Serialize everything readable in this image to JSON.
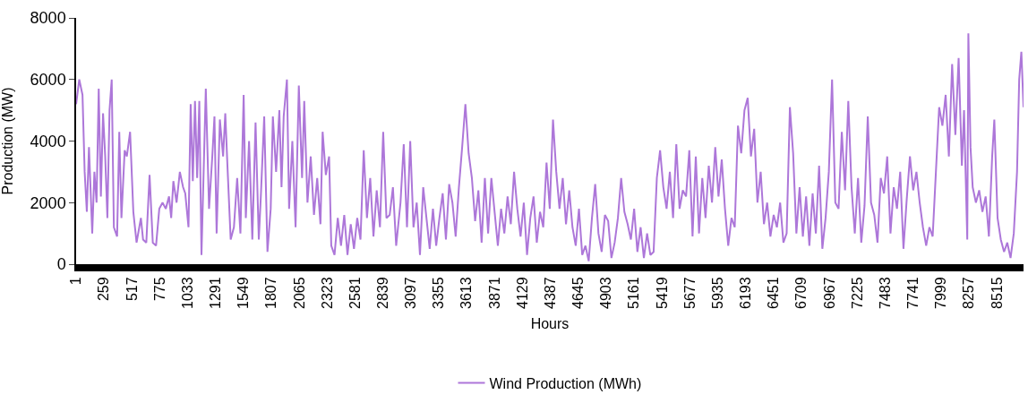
{
  "chart_data": {
    "type": "line",
    "xlabel": "Hours",
    "ylabel": "Production (MW)",
    "x": [
      1,
      30,
      60,
      80,
      100,
      120,
      150,
      170,
      190,
      210,
      230,
      250,
      270,
      290,
      310,
      330,
      350,
      380,
      400,
      420,
      450,
      470,
      500,
      530,
      560,
      600,
      620,
      650,
      680,
      710,
      740,
      770,
      800,
      830,
      860,
      880,
      900,
      930,
      960,
      990,
      1010,
      1040,
      1060,
      1080,
      1100,
      1120,
      1140,
      1160,
      1180,
      1200,
      1230,
      1260,
      1280,
      1300,
      1330,
      1360,
      1380,
      1400,
      1430,
      1460,
      1490,
      1520,
      1550,
      1570,
      1600,
      1630,
      1660,
      1690,
      1710,
      1740,
      1770,
      1800,
      1820,
      1850,
      1880,
      1900,
      1920,
      1950,
      1970,
      2000,
      2030,
      2060,
      2090,
      2110,
      2140,
      2170,
      2200,
      2230,
      2260,
      2280,
      2310,
      2340,
      2360,
      2390,
      2420,
      2450,
      2480,
      2510,
      2540,
      2570,
      2600,
      2630,
      2660,
      2690,
      2720,
      2750,
      2780,
      2810,
      2840,
      2870,
      2900,
      2930,
      2960,
      3000,
      3030,
      3060,
      3090,
      3120,
      3150,
      3180,
      3210,
      3240,
      3270,
      3300,
      3330,
      3360,
      3390,
      3420,
      3450,
      3480,
      3510,
      3540,
      3570,
      3600,
      3630,
      3660,
      3690,
      3720,
      3750,
      3780,
      3810,
      3840,
      3870,
      3900,
      3930,
      3960,
      3990,
      4020,
      4050,
      4080,
      4110,
      4140,
      4170,
      4200,
      4230,
      4260,
      4290,
      4320,
      4350,
      4380,
      4410,
      4440,
      4470,
      4500,
      4530,
      4560,
      4590,
      4620,
      4650,
      4680,
      4710,
      4740,
      4770,
      4800,
      4830,
      4860,
      4890,
      4920,
      4950,
      4980,
      5010,
      5040,
      5070,
      5100,
      5130,
      5160,
      5190,
      5220,
      5250,
      5280,
      5310,
      5340,
      5370,
      5400,
      5430,
      5460,
      5490,
      5520,
      5550,
      5580,
      5610,
      5640,
      5670,
      5700,
      5730,
      5760,
      5790,
      5820,
      5850,
      5880,
      5910,
      5940,
      5970,
      6000,
      6030,
      6060,
      6090,
      6120,
      6150,
      6180,
      6210,
      6240,
      6270,
      6300,
      6330,
      6360,
      6390,
      6420,
      6450,
      6480,
      6510,
      6540,
      6570,
      6600,
      6630,
      6660,
      6690,
      6720,
      6750,
      6780,
      6810,
      6840,
      6870,
      6900,
      6930,
      6960,
      6990,
      7020,
      7050,
      7080,
      7110,
      7140,
      7170,
      7200,
      7230,
      7260,
      7290,
      7320,
      7350,
      7380,
      7410,
      7440,
      7470,
      7500,
      7530,
      7560,
      7590,
      7620,
      7650,
      7680,
      7710,
      7740,
      7770,
      7800,
      7830,
      7860,
      7890,
      7920,
      7950,
      7980,
      8010,
      8040,
      8070,
      8100,
      8130,
      8160,
      8190,
      8210,
      8240,
      8250,
      8270,
      8290,
      8320,
      8350,
      8380,
      8410,
      8440,
      8470,
      8490,
      8520,
      8550,
      8580,
      8610,
      8640,
      8670,
      8700,
      8720,
      8740,
      8760
    ],
    "series": [
      {
        "name": "Wind Production (MWh)",
        "color": "#ad77d9",
        "values": [
          5200,
          6000,
          5500,
          3000,
          1700,
          3800,
          1000,
          3000,
          2000,
          5700,
          2200,
          4900,
          3500,
          1500,
          5000,
          6000,
          1200,
          900,
          4300,
          1500,
          3700,
          3500,
          4300,
          1700,
          700,
          1500,
          800,
          700,
          2900,
          700,
          600,
          1800,
          2000,
          1800,
          2200,
          1500,
          2700,
          2000,
          3000,
          2500,
          2300,
          1200,
          5200,
          2700,
          5300,
          2800,
          5300,
          300,
          3000,
          5700,
          1800,
          3500,
          4800,
          1000,
          4700,
          3500,
          4900,
          3200,
          800,
          1200,
          2800,
          1000,
          5500,
          1500,
          4000,
          800,
          4600,
          800,
          2300,
          4800,
          400,
          1800,
          4800,
          3000,
          5000,
          2500,
          4800,
          6000,
          1800,
          4000,
          1200,
          5800,
          2800,
          5300,
          2000,
          3500,
          1600,
          2800,
          1300,
          4300,
          2900,
          3500,
          600,
          300,
          1500,
          600,
          1600,
          300,
          1300,
          500,
          1500,
          800,
          3700,
          1500,
          2800,
          900,
          2400,
          1200,
          4300,
          1500,
          1600,
          2500,
          600,
          2000,
          3900,
          1200,
          4000,
          1200,
          2000,
          300,
          2500,
          1500,
          500,
          1800,
          600,
          1500,
          2300,
          800,
          2600,
          2000,
          900,
          2500,
          3800,
          5200,
          3600,
          2800,
          1400,
          2400,
          700,
          2800,
          1000,
          2800,
          1700,
          600,
          1800,
          1000,
          2200,
          1300,
          3000,
          1800,
          900,
          2000,
          300,
          1500,
          2200,
          700,
          1700,
          1200,
          3300,
          1800,
          4700,
          3000,
          1800,
          2800,
          1300,
          2400,
          1200,
          600,
          1800,
          300,
          600,
          100,
          1500,
          2600,
          1000,
          400,
          1600,
          1400,
          200,
          700,
          1500,
          2800,
          1700,
          1300,
          800,
          1800,
          400,
          1200,
          200,
          1000,
          300,
          400,
          2800,
          3700,
          2500,
          1800,
          3000,
          1500,
          3900,
          1800,
          2400,
          2200,
          3700,
          900,
          3500,
          1000,
          2800,
          1500,
          3200,
          2000,
          3800,
          2200,
          3400,
          1800,
          600,
          1500,
          1200,
          4500,
          3600,
          5000,
          5400,
          3500,
          4400,
          2000,
          3000,
          1300,
          2000,
          900,
          1600,
          1200,
          2000,
          700,
          1000,
          5100,
          3600,
          1000,
          2500,
          900,
          2200,
          600,
          2300,
          1000,
          3200,
          500,
          1500,
          3000,
          6000,
          2000,
          1800,
          4300,
          2400,
          5300,
          2500,
          1000,
          2800,
          700,
          1900,
          4800,
          2000,
          1600,
          700,
          2800,
          2300,
          3500,
          1000,
          2500,
          1800,
          3000,
          500,
          2100,
          3500,
          2400,
          3000,
          2000,
          1200,
          600,
          1200,
          900,
          3000,
          5100,
          4500,
          5500,
          3500,
          6500,
          4200,
          6700,
          3200,
          5000,
          800,
          7500,
          3800,
          2500,
          2000,
          2400,
          1700,
          2200,
          900,
          3500,
          4700,
          1500,
          800,
          400,
          700,
          200,
          1000,
          3000,
          6000,
          6900,
          5100
        ]
      }
    ],
    "xlim": [
      1,
      8760
    ],
    "xticks": [
      1,
      259,
      517,
      775,
      1033,
      1291,
      1549,
      1807,
      2065,
      2323,
      2581,
      2839,
      3097,
      3355,
      3613,
      3871,
      4129,
      4387,
      4645,
      4903,
      5161,
      5419,
      5677,
      5935,
      6193,
      6451,
      6709,
      6967,
      7225,
      7483,
      7741,
      7999,
      8257,
      8515
    ],
    "ylim": [
      0,
      8000
    ],
    "yticks": [
      0,
      2000,
      4000,
      6000,
      8000
    ],
    "legend": "bottom",
    "line_style": "solid",
    "marker": "none"
  }
}
